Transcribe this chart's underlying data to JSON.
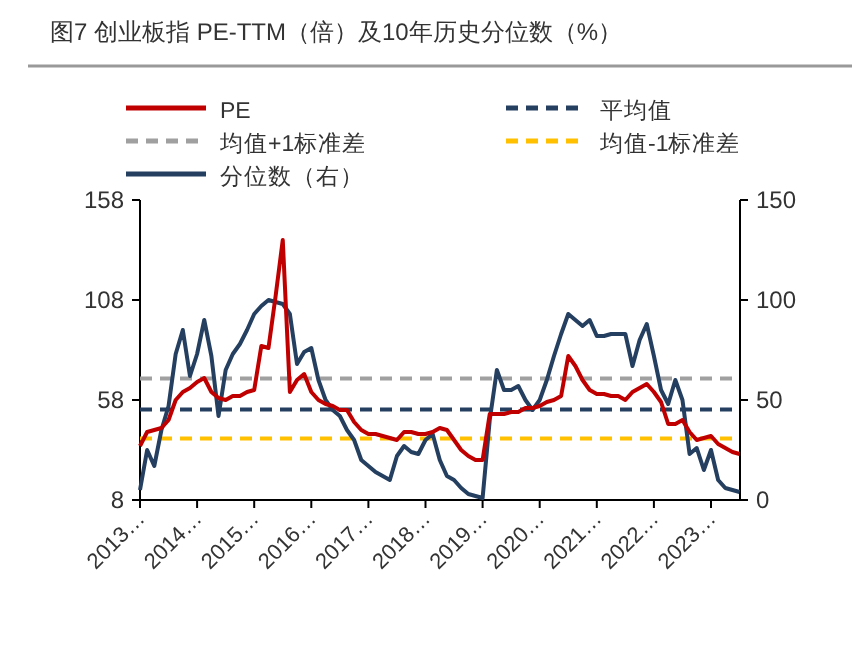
{
  "chart_data": {
    "type": "line",
    "title": "图7 创业板指 PE-TTM（倍）及10年历史分位数（%）",
    "categories": [
      "2013…",
      null,
      null,
      null,
      null,
      null,
      null,
      null,
      "2014…",
      null,
      null,
      null,
      null,
      null,
      null,
      null,
      "2015…",
      null,
      null,
      null,
      null,
      null,
      null,
      null,
      "2016…",
      null,
      null,
      null,
      null,
      null,
      null,
      null,
      "2017…",
      null,
      null,
      null,
      null,
      null,
      null,
      null,
      "2018…",
      null,
      null,
      null,
      null,
      null,
      null,
      null,
      "2019…",
      null,
      null,
      null,
      null,
      null,
      null,
      null,
      "2020…",
      null,
      null,
      null,
      null,
      null,
      null,
      null,
      "2021…",
      null,
      null,
      null,
      null,
      null,
      null,
      null,
      "2022…",
      null,
      null,
      null,
      null,
      null,
      null,
      null,
      "2023…",
      null,
      null,
      null,
      null
    ],
    "ylim": [
      8,
      158
    ],
    "yticks": [
      8,
      58,
      108,
      158
    ],
    "y2lim": [
      0,
      150
    ],
    "y2ticks": [
      0,
      50,
      100,
      150
    ],
    "legend": "top",
    "grid": false,
    "line_style": "solid",
    "marker": "none",
    "series": [
      {
        "name": "PE",
        "color": "#c00000",
        "values": [
          35,
          42,
          43,
          44,
          48,
          58,
          62,
          64,
          67,
          69,
          62,
          59,
          58,
          60,
          60,
          62,
          63,
          85,
          84,
          110,
          138,
          62,
          68,
          71,
          62,
          58,
          56,
          55,
          53,
          53,
          47,
          43,
          41,
          41,
          40,
          39,
          38,
          42,
          42,
          41,
          41,
          42,
          44,
          43,
          38,
          33,
          30,
          28,
          28,
          51,
          51,
          51,
          52,
          52,
          54,
          54,
          55,
          57,
          58,
          60,
          80,
          75,
          68,
          63,
          61,
          61,
          60,
          60,
          58,
          62,
          64,
          66,
          62,
          57,
          46,
          46,
          48,
          42,
          38,
          39,
          40,
          36,
          34,
          32,
          31
        ]
      },
      {
        "name": "分位数（右）",
        "color": "#243f60",
        "axis": "y2",
        "values": [
          5,
          25,
          17,
          35,
          47,
          73,
          85,
          62,
          73,
          90,
          72,
          42,
          65,
          73,
          78,
          85,
          93,
          97,
          100,
          99,
          98,
          93,
          68,
          74,
          76,
          60,
          50,
          45,
          42,
          35,
          30,
          20,
          17,
          14,
          12,
          10,
          22,
          27,
          24,
          23,
          30,
          33,
          20,
          12,
          10,
          6,
          3,
          2,
          1,
          40,
          65,
          55,
          55,
          57,
          50,
          45,
          50,
          60,
          72,
          83,
          93,
          90,
          87,
          90,
          82,
          82,
          83,
          83,
          83,
          67,
          80,
          88,
          72,
          55,
          48,
          60,
          50,
          23,
          26,
          15,
          25,
          10,
          6,
          5,
          4
        ]
      }
    ],
    "ref_lines": [
      {
        "axis": "y",
        "value": 53.3,
        "label": "平均值",
        "color": "#243f60",
        "line_style": "dashed"
      },
      {
        "axis": "y",
        "value": 68.7,
        "label": "均值+1标准差",
        "color": "#a0a0a0",
        "line_style": "dashed"
      },
      {
        "axis": "y",
        "value": 38.7,
        "label": "均值-1标准差",
        "color": "#ffc000",
        "line_style": "dashed"
      }
    ]
  }
}
